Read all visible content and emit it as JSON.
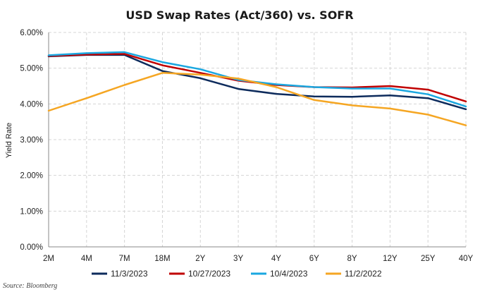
{
  "chart_data": {
    "type": "line",
    "title": "USD Swap Rates (Act/360) vs. SOFR",
    "ylabel": "Yield Rate",
    "xlabel": "",
    "categories": [
      "2M",
      "4M",
      "7M",
      "18M",
      "2Y",
      "3Y",
      "4Y",
      "6Y",
      "8Y",
      "12Y",
      "25Y",
      "40Y"
    ],
    "ylim": [
      0,
      6
    ],
    "yticks": [
      {
        "value": 0,
        "label": "0.00%"
      },
      {
        "value": 1,
        "label": "1.00%"
      },
      {
        "value": 2,
        "label": "2.00%"
      },
      {
        "value": 3,
        "label": "3.00%"
      },
      {
        "value": 4,
        "label": "4.00%"
      },
      {
        "value": 5,
        "label": "5.00%"
      },
      {
        "value": 6,
        "label": "6.00%"
      }
    ],
    "grid": true,
    "legend_position": "bottom",
    "series": [
      {
        "name": "11/3/2023",
        "color": "#0d2b5c",
        "values": [
          5.33,
          5.37,
          5.37,
          4.92,
          4.72,
          4.42,
          4.28,
          4.21,
          4.2,
          4.24,
          4.16,
          3.85
        ]
      },
      {
        "name": "10/27/2023",
        "color": "#c00000",
        "values": [
          5.34,
          5.38,
          5.4,
          5.08,
          4.87,
          4.65,
          4.53,
          4.47,
          4.46,
          4.5,
          4.4,
          4.07
        ]
      },
      {
        "name": "10/4/2023",
        "color": "#1aa7e0",
        "values": [
          5.36,
          5.42,
          5.45,
          5.17,
          4.97,
          4.67,
          4.55,
          4.47,
          4.43,
          4.43,
          4.27,
          3.93
        ]
      },
      {
        "name": "11/2/2022",
        "color": "#f5a623",
        "values": [
          3.81,
          4.16,
          4.53,
          4.87,
          4.82,
          4.71,
          4.47,
          4.11,
          3.96,
          3.87,
          3.7,
          3.4
        ]
      }
    ],
    "source": "Source: Bloomberg"
  }
}
